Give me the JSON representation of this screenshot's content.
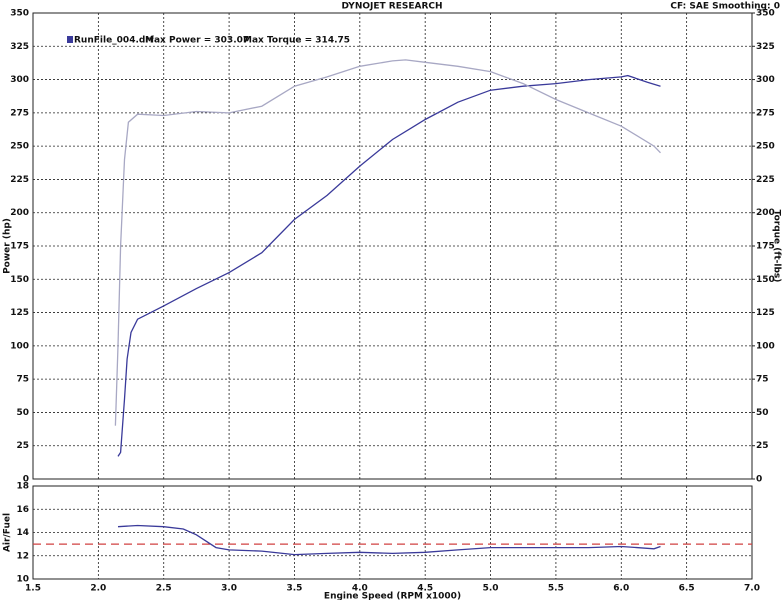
{
  "title": "DYNOJET RESEARCH",
  "settings_text": "CF: SAE  Smoothing: 0",
  "chart_data": [
    {
      "type": "line",
      "annotations": [
        "RunFile_004.drf",
        "Max Power = 303.07",
        "Max Torque = 314.75"
      ],
      "ylabel": "Power (hp)",
      "y2label": "Torque (ft-lbs)",
      "xlim": [
        1.5,
        7.0
      ],
      "xticks": [
        1.5,
        2,
        2.5,
        3,
        3.5,
        4,
        4.5,
        5,
        5.5,
        6,
        6.5,
        7
      ],
      "ylim": [
        0,
        350
      ],
      "yticks": [
        0,
        25,
        50,
        75,
        100,
        125,
        150,
        175,
        200,
        225,
        250,
        275,
        300,
        325,
        350
      ],
      "y2lim": [
        0,
        350
      ],
      "y2ticks": [
        0,
        25,
        50,
        75,
        100,
        125,
        150,
        175,
        200,
        225,
        250,
        275,
        300,
        325,
        350
      ],
      "grid": true,
      "series": [
        {
          "color": "#3a3a9a",
          "x": [
            2.15,
            2.17,
            2.2,
            2.22,
            2.25,
            2.3,
            2.4,
            2.5,
            2.75,
            3.0,
            3.25,
            3.5,
            3.75,
            4.0,
            4.25,
            4.5,
            4.75,
            5.0,
            5.25,
            5.5,
            5.75,
            6.0,
            6.05,
            6.2,
            6.3
          ],
          "values": [
            17,
            20,
            60,
            90,
            110,
            120,
            125,
            130,
            143,
            155,
            170,
            195,
            213,
            235,
            255,
            270,
            283,
            292,
            295,
            297,
            300,
            302,
            303,
            298,
            295
          ]
        },
        {
          "color": "#a8a8c4",
          "axis": "y2",
          "x": [
            2.13,
            2.15,
            2.17,
            2.2,
            2.23,
            2.3,
            2.5,
            2.75,
            3.0,
            3.25,
            3.5,
            3.75,
            4.0,
            4.25,
            4.35,
            4.5,
            4.75,
            5.0,
            5.25,
            5.5,
            5.75,
            6.0,
            6.25,
            6.3
          ],
          "values": [
            40,
            100,
            175,
            240,
            268,
            274,
            273,
            276,
            275,
            280,
            295,
            302,
            310,
            314,
            314.75,
            313,
            310,
            306,
            297,
            285,
            275,
            265,
            250,
            245
          ]
        }
      ]
    },
    {
      "type": "line",
      "ylabel": "Air/Fuel",
      "xlabel": "Engine Speed (RPM x1000)",
      "xlim": [
        1.5,
        7.0
      ],
      "xticks": [
        1.5,
        {
          "value": 2,
          "label": "2.0"
        },
        2.5,
        {
          "value": 3,
          "label": "3.0"
        },
        3.5,
        {
          "value": 4,
          "label": "4.0"
        },
        4.5,
        {
          "value": 5,
          "label": "5.0"
        },
        5.5,
        {
          "value": 6,
          "label": "6.0"
        },
        6.5,
        {
          "value": 7,
          "label": "7.0"
        }
      ],
      "ylim": [
        10,
        18
      ],
      "yticks": [
        10,
        12,
        14,
        16,
        18
      ],
      "grid": true,
      "reference": {
        "value": 13,
        "color": "#d04040"
      },
      "series": [
        {
          "color": "#3a3a9a",
          "x": [
            2.15,
            2.3,
            2.5,
            2.65,
            2.75,
            2.9,
            3.0,
            3.25,
            3.5,
            3.75,
            4.0,
            4.25,
            4.5,
            4.75,
            5.0,
            5.25,
            5.5,
            5.75,
            6.0,
            6.25,
            6.3
          ],
          "values": [
            14.5,
            14.6,
            14.5,
            14.3,
            13.8,
            12.7,
            12.5,
            12.4,
            12.1,
            12.2,
            12.3,
            12.2,
            12.3,
            12.5,
            12.7,
            12.7,
            12.7,
            12.7,
            12.8,
            12.6,
            12.8
          ]
        }
      ]
    }
  ]
}
